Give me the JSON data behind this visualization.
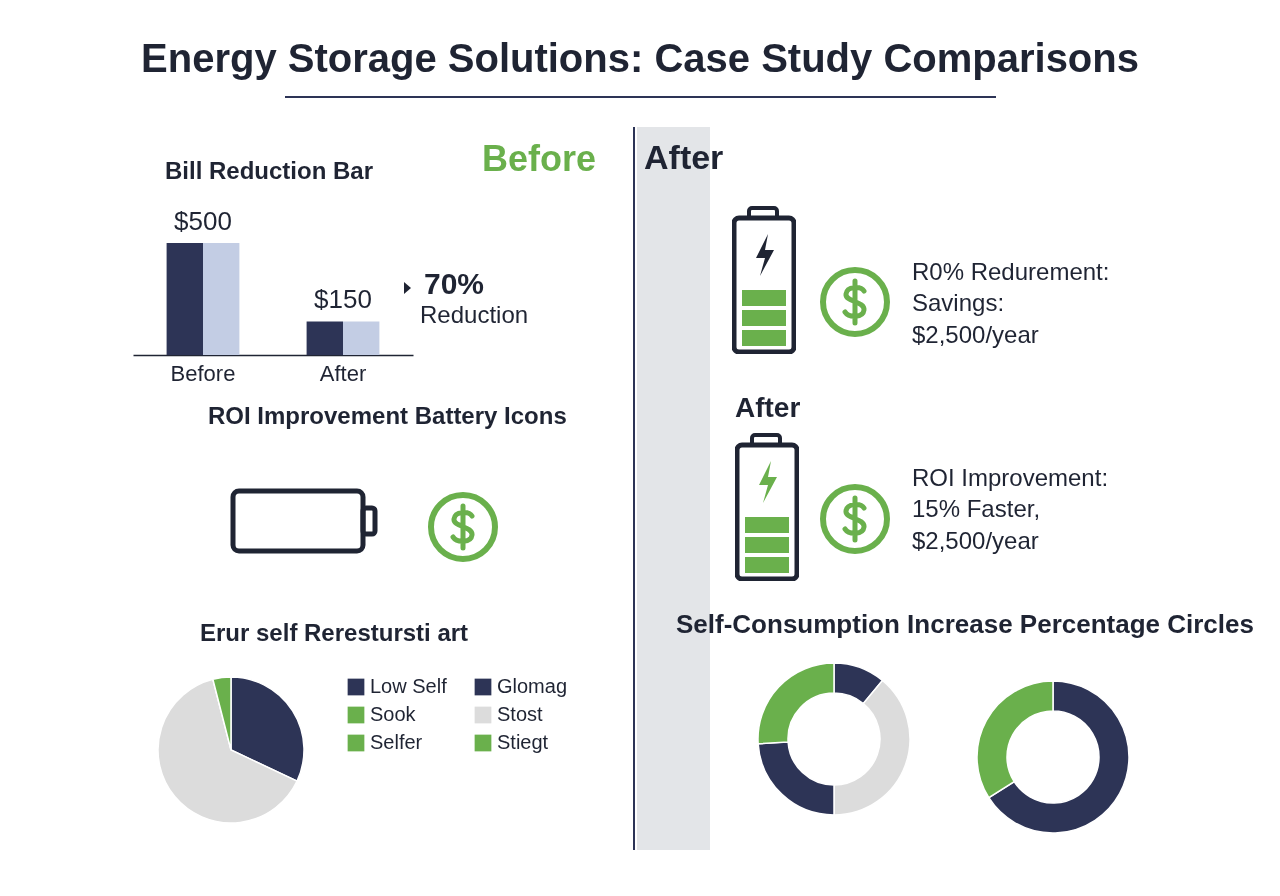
{
  "chart_data": [
    {
      "type": "other",
      "title": "Energy Storage Solutions: Case Study Comparisons"
    },
    {
      "type": "bar",
      "title": "Bill Reduction Bar",
      "categories": [
        "Before",
        "After"
      ],
      "series": [
        {
          "color": "#2d3456",
          "values": [
            500,
            150
          ],
          "value_labels": [
            "$500",
            "$150"
          ]
        },
        {
          "color": "#c3cde4",
          "values": [
            500,
            150
          ]
        }
      ],
      "annotations": [
        "Before",
        "70%",
        "Reduction"
      ]
    },
    {
      "type": "other",
      "title": "ROI Improvement Battery Icons"
    },
    {
      "type": "pie",
      "title": "Erur self Rerestursti art",
      "categories": [
        "Low Self",
        "Sook",
        "Selfer",
        "Glomag",
        "Stost",
        "Stiegt"
      ],
      "values": [
        32,
        null,
        null,
        null,
        64,
        4
      ],
      "colors": [
        "#2d3456",
        "#6ab04c",
        "#6ab04c",
        "#2d3456",
        "#dcdcdc",
        "#6ab04c"
      ],
      "legend": "right"
    },
    {
      "type": "other",
      "title": "After",
      "annotations": [
        "R0% Redurement:",
        "Savings:",
        "$2,500/year"
      ]
    },
    {
      "type": "other",
      "title": "After",
      "annotations": [
        "ROI Improvement:",
        "15% Faster,",
        "$2,500/year"
      ]
    },
    {
      "type": "donut",
      "title": "Self-Consumption Increase Percentage Circles",
      "categories": [
        null,
        null,
        null,
        null
      ],
      "values": [
        11,
        39,
        24,
        26
      ],
      "colors": [
        "#2d3456",
        "#dcdcdc",
        "#2d3456",
        "#6ab04c"
      ]
    },
    {
      "type": "donut",
      "categories": [
        null,
        null
      ],
      "values": [
        66,
        34
      ],
      "colors": [
        "#2d3456",
        "#6ab04c"
      ]
    }
  ]
}
